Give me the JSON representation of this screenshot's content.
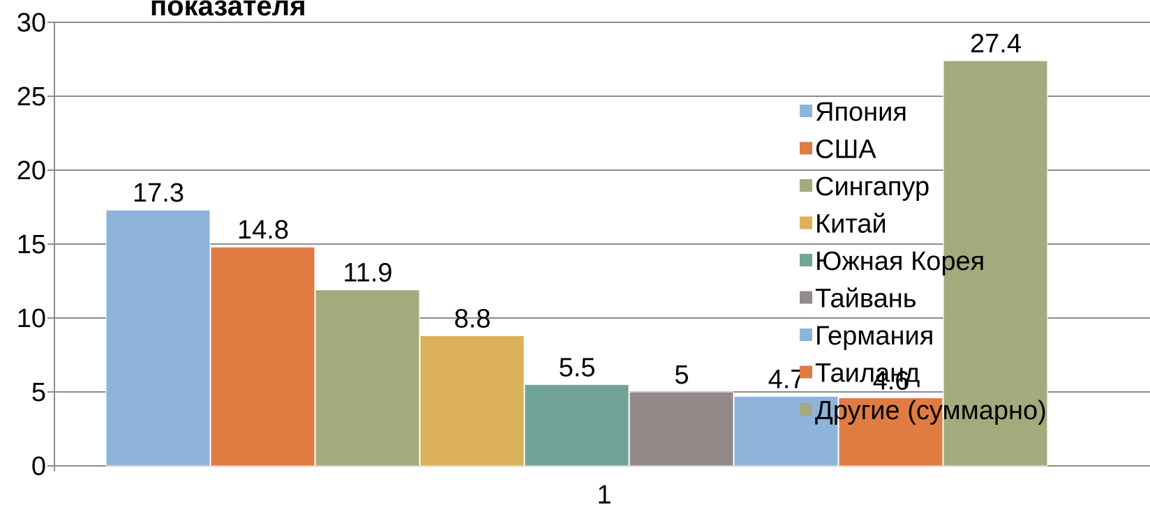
{
  "chart_data": {
    "type": "bar",
    "title": "показателя",
    "categories": [
      "1"
    ],
    "series": [
      {
        "name": "Япония",
        "values": [
          17.3
        ],
        "color": "#8eb4d9"
      },
      {
        "name": "США",
        "values": [
          14.8
        ],
        "color": "#e07b42"
      },
      {
        "name": "Сингапур",
        "values": [
          11.9
        ],
        "color": "#a3ab7d"
      },
      {
        "name": "Китай",
        "values": [
          8.8
        ],
        "color": "#dbb15a"
      },
      {
        "name": "Южная Корея",
        "values": [
          5.5
        ],
        "color": "#72a397"
      },
      {
        "name": "Тайвань",
        "values": [
          5
        ],
        "color": "#938a8a"
      },
      {
        "name": "Германия",
        "values": [
          4.7
        ],
        "color": "#8eb4d9"
      },
      {
        "name": "Таиланд",
        "values": [
          4.6
        ],
        "color": "#e07b42"
      },
      {
        "name": "Другие (суммарно)",
        "values": [
          27.4
        ],
        "color": "#a3ab7d"
      }
    ],
    "data_labels": [
      "17.3",
      "14.8",
      "11.9",
      "8.8",
      "5.5",
      "5",
      "4.7",
      "4.6",
      "27.4"
    ],
    "y_ticks": [
      "0",
      "5",
      "10",
      "15",
      "20",
      "25",
      "30"
    ],
    "ylim": [
      0,
      30
    ],
    "xlabel": "",
    "ylabel": "",
    "grid": true,
    "legend_position": "right"
  }
}
